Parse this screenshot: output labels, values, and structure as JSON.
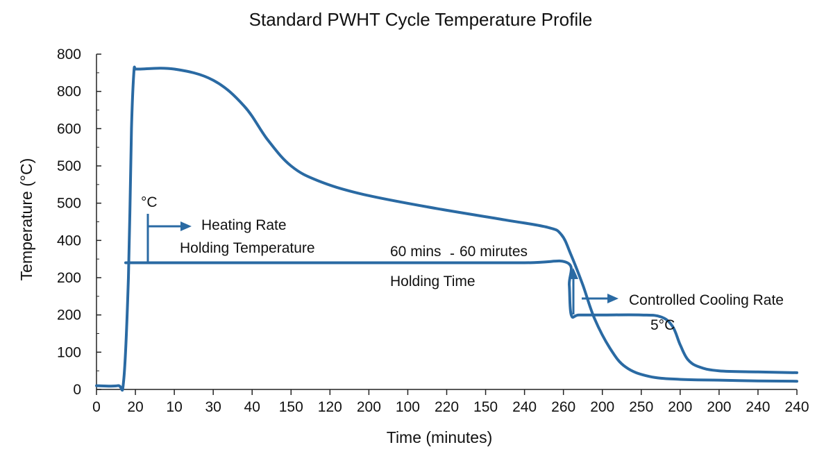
{
  "chart_data": {
    "type": "line",
    "title": "Standard PWHT Cycle Temperature Profile",
    "xlabel": "Time (minutes)",
    "ylabel": "Temperature (°C)",
    "grid": false,
    "legend": "none",
    "x_tick_labels": [
      "0",
      "20",
      "10",
      "30",
      "40",
      "150",
      "120",
      "200",
      "100",
      "220",
      "150",
      "240",
      "260",
      "200",
      "250",
      "200",
      "200",
      "240",
      "240"
    ],
    "y_tick_labels": [
      "0",
      "100",
      "200",
      "200",
      "400",
      "500",
      "500",
      "600",
      "800",
      "800"
    ],
    "xlim": [
      0,
      18
    ],
    "ylim": [
      0,
      9
    ],
    "series": [
      {
        "color": "#2a6aa3",
        "x": [
          0,
          0.55,
          0.7,
          0.82,
          0.9,
          0.96,
          1.0,
          1.1,
          2.0,
          3.0,
          3.8,
          4.4,
          5.0,
          5.7,
          6.8,
          8.5,
          10.5,
          11.6,
          11.95,
          12.2,
          12.5,
          12.8,
          13.2,
          13.6,
          14.2,
          15.0,
          16.0,
          17.0,
          18.0
        ],
        "y": [
          0.1,
          0.1,
          0.25,
          3.0,
          7.0,
          8.5,
          8.6,
          8.6,
          8.6,
          8.3,
          7.6,
          6.7,
          6.0,
          5.6,
          5.25,
          4.9,
          4.55,
          4.35,
          4.15,
          3.6,
          2.8,
          1.9,
          1.1,
          0.6,
          0.35,
          0.27,
          0.25,
          0.23,
          0.22
        ]
      },
      {
        "color": "#2a6aa3",
        "x": [
          0.75,
          1.0,
          2.0,
          5.0,
          8.0,
          11.0,
          12.1,
          12.15,
          12.2,
          12.4,
          13.0,
          14.0,
          14.5,
          14.8,
          15.0,
          15.2,
          15.5,
          16.0,
          17.0,
          18.0
        ],
        "y": [
          3.4,
          3.4,
          3.4,
          3.4,
          3.4,
          3.4,
          3.4,
          2.8,
          2.0,
          2.0,
          2.0,
          2.0,
          1.95,
          1.7,
          1.2,
          0.8,
          0.6,
          0.5,
          0.47,
          0.45
        ]
      }
    ],
    "annotations": {
      "unit_c": "°C",
      "heating_rate": "Heating Rate",
      "holding_temperature": "Holding Temperature",
      "mins_60": "60 mins",
      "dash_mark": "-",
      "minutes_60": "60 mirutes",
      "holding_time": "Holding Time",
      "controlled_cooling_rate": "Controlled Cooling Rate",
      "five_c": "5°C"
    }
  }
}
